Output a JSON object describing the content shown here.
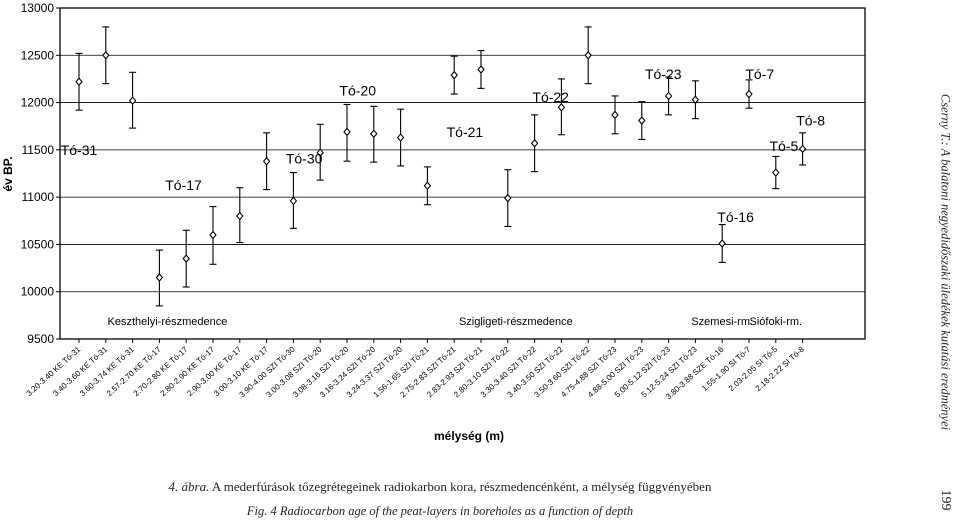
{
  "chart_data": {
    "type": "scatter",
    "ylabel": "év BP.",
    "xlabel": "mélység (m)",
    "ylim": [
      9500,
      13000
    ],
    "yticks": [
      9500,
      10000,
      10500,
      11000,
      11500,
      12000,
      12500,
      13000
    ],
    "grid": "horizontal",
    "categories": [
      "3.20-3.40 KE Tó-31",
      "3.40-3.60 KE Tó-31",
      "3.60-3.74 KE Tó-31",
      "2.57-2.70 KE Tó-17",
      "2.70-2.80 KE Tó-17",
      "2.80-2.90 KE Tó-17",
      "2.90-3.00 KE Tó-17",
      "3.00-3.10 KE Tó-17",
      "3.90-4.00 SZI Tó-30",
      "3.00-3.08 SZI Tó-20",
      "3.08-3.16 SZI Tó-20",
      "3.16-3.24 SZI Tó-20",
      "3.24-3.37 SZI Tó-20",
      "1.56-1.65 SZI Tó-21",
      "2.75-2.83 SZI Tó-21",
      "2.83-2.93 SZI Tó-21",
      "2.80-3.10 SZI Tó-22",
      "3.30-3.40 SZI Tó-22",
      "3.40-3.50 SZI Tó-22",
      "3.50-3.60 SZI Tó-22",
      "4.75-4.88 SZI Tó-23",
      "4.88-5.00 SZI Tó-23",
      "5.00-5.12 SZI Tó-23",
      "5.12-5.24 SZI Tó-23",
      "3.80-3.88 SZE Tó-16",
      "1.55-1.90 SI Tó-7",
      "2.03-2.05 SI Tó-5",
      "2.18-2.22 SI Tó-8"
    ],
    "values": [
      12220,
      12500,
      12020,
      10150,
      10350,
      10600,
      10800,
      11380,
      10960,
      11470,
      11690,
      11670,
      11630,
      11120,
      12290,
      12350,
      10990,
      11570,
      11950,
      12500,
      11870,
      11810,
      12070,
      12030,
      10510,
      12090,
      11260,
      11510
    ],
    "error_low": [
      11920,
      12200,
      11730,
      9850,
      10050,
      10290,
      10520,
      11080,
      10670,
      11180,
      11380,
      11370,
      11330,
      10920,
      12090,
      12150,
      10690,
      11270,
      11660,
      12200,
      11670,
      11610,
      11870,
      11830,
      10310,
      11940,
      11090,
      11340
    ],
    "error_high": [
      12520,
      12800,
      12320,
      10440,
      10650,
      10900,
      11100,
      11680,
      11260,
      11770,
      11980,
      11960,
      11930,
      11320,
      12490,
      12550,
      11290,
      11870,
      12250,
      12800,
      12070,
      12010,
      12270,
      12230,
      10710,
      12240,
      11430,
      11680
    ],
    "annotations": [
      {
        "text": "Tó-31",
        "at": 0,
        "y": 11500
      },
      {
        "text": "Tó-17",
        "at": 3.9,
        "y": 11130
      },
      {
        "text": "Tó-30",
        "at": 8.4,
        "y": 11410
      },
      {
        "text": "Tó-20",
        "at": 10.4,
        "y": 12130
      },
      {
        "text": "Tó-21",
        "at": 14.4,
        "y": 11690
      },
      {
        "text": "Tó-22",
        "at": 17.6,
        "y": 12060
      },
      {
        "text": "Tó-23",
        "at": 21.8,
        "y": 12300
      },
      {
        "text": "Tó-16",
        "at": 24.5,
        "y": 10790
      },
      {
        "text": "Tó-7",
        "at": 25.4,
        "y": 12300
      },
      {
        "text": "Tó-5",
        "at": 26.3,
        "y": 11540
      },
      {
        "text": "Tó-8",
        "at": 27.3,
        "y": 11810
      }
    ],
    "regions": [
      {
        "text": "Keszthelyi-részmedence",
        "at": 3.3
      },
      {
        "text": "Szigligeti-részmedence",
        "at": 16.3
      },
      {
        "text": "Szemesi-rm.",
        "at": 24.0
      },
      {
        "text": "Siófoki-rm.",
        "at": 26.0
      }
    ]
  },
  "caption": {
    "hu_label": "4. ábra.",
    "hu_text": " A mederfúrások tőzegrétegeinek radiokarbon kora, részmedencénként, a mélység függvényében",
    "en_text": "Fig. 4 Radiocarbon age of the peat-layers in boreholes as a function of depth"
  },
  "running_head": "Cserny T.: A balatoni negyedidőszaki üledékek kutatási eredményei",
  "page_number": "199"
}
